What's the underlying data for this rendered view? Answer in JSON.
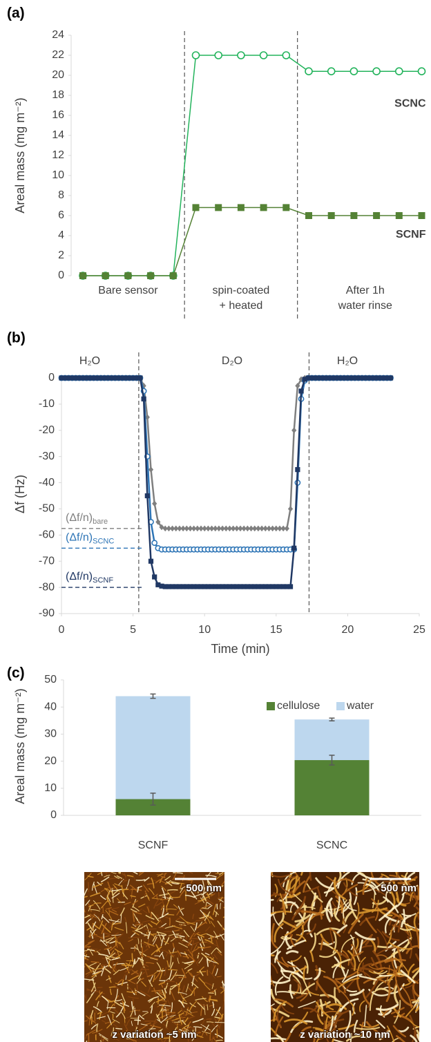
{
  "chart_data": [
    {
      "type": "line",
      "panel_label": "(a)",
      "ylabel": "Areal mass (mg m⁻²)",
      "categories": [
        null,
        null,
        null,
        null,
        null,
        null,
        null,
        null,
        null,
        null,
        null,
        null,
        null,
        null,
        null,
        null
      ],
      "region_labels": [
        [
          "Bare sensor"
        ],
        [
          "spin-coated",
          "+ heated"
        ],
        [
          "After 1h",
          "water rinse"
        ]
      ],
      "series": [
        {
          "name": "SCNC",
          "color": "#22b35b",
          "marker": "circle-open",
          "values": [
            0,
            0,
            0,
            0,
            0,
            22,
            22,
            22,
            22,
            22,
            20.4,
            20.4,
            20.4,
            20.4,
            20.4,
            20.4
          ]
        },
        {
          "name": "SCNF",
          "color": "#548235",
          "marker": "square",
          "values": [
            0,
            0,
            0,
            0,
            0,
            6.8,
            6.8,
            6.8,
            6.8,
            6.8,
            6,
            6,
            6,
            6,
            6,
            6
          ]
        }
      ],
      "ylim": [
        0,
        24
      ],
      "yticks": [
        0,
        2,
        4,
        6,
        8,
        10,
        12,
        14,
        16,
        18,
        20,
        22,
        24
      ]
    },
    {
      "type": "line",
      "panel_label": "(b)",
      "ylabel": "Δf (Hz)",
      "xlabel": "Time (min)",
      "region_labels": [
        [
          "H₂O"
        ],
        [
          "D₂O"
        ],
        [
          "H₂O"
        ]
      ],
      "vlines": [
        5.4,
        17.3
      ],
      "reference_lines": [
        {
          "value": -57.5,
          "label": "(Δf/n)",
          "subscript": "bare",
          "color": "#7f7f7f"
        },
        {
          "value": -65,
          "label": "(Δf/n)",
          "subscript": "SCNC",
          "color": "#2e75b6"
        },
        {
          "value": -80,
          "label": "(Δf/n)",
          "subscript": "SCNF",
          "color": "#203864"
        }
      ],
      "x": [
        0,
        0.25,
        0.5,
        0.75,
        1,
        1.25,
        1.5,
        1.75,
        2,
        2.25,
        2.5,
        2.75,
        3,
        3.25,
        3.5,
        3.75,
        4,
        4.25,
        4.5,
        4.75,
        5,
        5.25,
        5.5,
        5.75,
        6,
        6.25,
        6.5,
        6.75,
        7,
        7.25,
        7.5,
        7.75,
        8,
        8.25,
        8.5,
        8.75,
        9,
        9.25,
        9.5,
        9.75,
        10,
        10.25,
        10.5,
        10.75,
        11,
        11.25,
        11.5,
        11.75,
        12,
        12.25,
        12.5,
        12.75,
        13,
        13.25,
        13.5,
        13.75,
        14,
        14.25,
        14.5,
        14.75,
        15,
        15.25,
        15.5,
        15.75,
        16,
        16.25,
        16.5,
        16.75,
        17,
        17.25,
        17.5,
        17.75,
        18,
        18.25,
        18.5,
        18.75,
        19,
        19.25,
        19.5,
        19.75,
        20,
        20.25,
        20.5,
        20.75,
        21,
        21.25,
        21.5,
        21.75,
        22,
        22.25,
        22.5,
        22.75,
        23
      ],
      "series": [
        {
          "color": "#7f7f7f",
          "marker": "diamond",
          "values": [
            0,
            0,
            0,
            0,
            0,
            0,
            0,
            0,
            0,
            0,
            0,
            0,
            0,
            0,
            0,
            0,
            0,
            0,
            0,
            0,
            0,
            0,
            0,
            -3,
            -15,
            -35,
            -48,
            -55,
            -57,
            -57.5,
            -57.5,
            -57.5,
            -57.5,
            -57.5,
            -57.5,
            -57.5,
            -57.5,
            -57.5,
            -57.5,
            -57.5,
            -57.5,
            -57.5,
            -57.5,
            -57.5,
            -57.5,
            -57.5,
            -57.5,
            -57.5,
            -57.5,
            -57.5,
            -57.5,
            -57.5,
            -57.5,
            -57.5,
            -57.5,
            -57.5,
            -57.5,
            -57.5,
            -57.5,
            -57.5,
            -57.5,
            -57.5,
            -57.5,
            -57.5,
            -50,
            -20,
            -3,
            -0.5,
            0,
            0,
            0,
            0,
            0,
            0,
            0,
            0,
            0,
            0,
            0,
            0,
            0,
            0,
            0,
            0,
            0,
            0,
            0,
            0,
            0,
            0,
            0,
            0,
            0
          ]
        },
        {
          "color": "#2e75b6",
          "marker": "circle-open",
          "values": [
            0,
            0,
            0,
            0,
            0,
            0,
            0,
            0,
            0,
            0,
            0,
            0,
            0,
            0,
            0,
            0,
            0,
            0,
            0,
            0,
            0,
            0,
            0,
            -5,
            -30,
            -55,
            -63,
            -65,
            -65.5,
            -65.5,
            -65.5,
            -65.5,
            -65.5,
            -65.5,
            -65.5,
            -65.5,
            -65.5,
            -65.5,
            -65.5,
            -65.5,
            -65.5,
            -65.5,
            -65.5,
            -65.5,
            -65.5,
            -65.5,
            -65.5,
            -65.5,
            -65.5,
            -65.5,
            -65.5,
            -65.5,
            -65.5,
            -65.5,
            -65.5,
            -65.5,
            -65.5,
            -65.5,
            -65.5,
            -65.5,
            -65.5,
            -65.5,
            -65.5,
            -65.5,
            -65.5,
            -65.5,
            -40,
            -8,
            -1,
            0,
            0,
            0,
            0,
            0,
            0,
            0,
            0,
            0,
            0,
            0,
            0,
            0,
            0,
            0,
            0,
            0,
            0,
            0,
            0,
            0,
            0,
            0,
            0
          ]
        },
        {
          "color": "#203864",
          "marker": "square",
          "values": [
            0,
            0,
            0,
            0,
            0,
            0,
            0,
            0,
            0,
            0,
            0,
            0,
            0,
            0,
            0,
            0,
            0,
            0,
            0,
            0,
            0,
            0,
            0,
            -8,
            -45,
            -70,
            -76,
            -79,
            -79.5,
            -79.7,
            -79.7,
            -79.7,
            -79.7,
            -79.7,
            -79.7,
            -79.7,
            -79.7,
            -79.7,
            -79.7,
            -79.7,
            -79.7,
            -79.7,
            -79.7,
            -79.7,
            -79.7,
            -79.7,
            -79.7,
            -79.7,
            -79.7,
            -79.7,
            -79.7,
            -79.7,
            -79.7,
            -79.7,
            -79.7,
            -79.7,
            -79.7,
            -79.7,
            -79.7,
            -79.7,
            -79.7,
            -79.7,
            -79.7,
            -79.7,
            -79.7,
            -65,
            -35,
            -5,
            -0.5,
            0,
            0,
            0,
            0,
            0,
            0,
            0,
            0,
            0,
            0,
            0,
            0,
            0,
            0,
            0,
            0,
            0,
            0,
            0,
            0,
            0,
            0,
            0,
            0
          ]
        }
      ],
      "xlim": [
        0,
        25
      ],
      "xticks": [
        0,
        5,
        10,
        15,
        20,
        25
      ],
      "ylim": [
        -90,
        0
      ],
      "yticks": [
        -90,
        -80,
        -70,
        -60,
        -50,
        -40,
        -30,
        -20,
        -10,
        0
      ]
    },
    {
      "type": "bar",
      "stacked": true,
      "panel_label": "(c)",
      "ylabel": "Areal mass (mg m⁻²)",
      "categories": [
        "SCNF",
        "SCNC"
      ],
      "series": [
        {
          "name": "cellulose",
          "color": "#548235",
          "values": [
            6,
            20.4
          ],
          "errors": [
            2.2,
            1.8
          ]
        },
        {
          "name": "water",
          "color": "#bdd7ee",
          "values": [
            38,
            15
          ],
          "errors": [
            0.8,
            0.5
          ]
        }
      ],
      "legend": "top-right",
      "ylim": [
        0,
        50
      ],
      "yticks": [
        0,
        10,
        20,
        30,
        40,
        50
      ]
    }
  ],
  "images": [
    {
      "scale_bar": "500 nm",
      "caption": "z variation ~5 nm"
    },
    {
      "scale_bar": "500 nm",
      "caption": "z variation ~10 nm"
    }
  ]
}
